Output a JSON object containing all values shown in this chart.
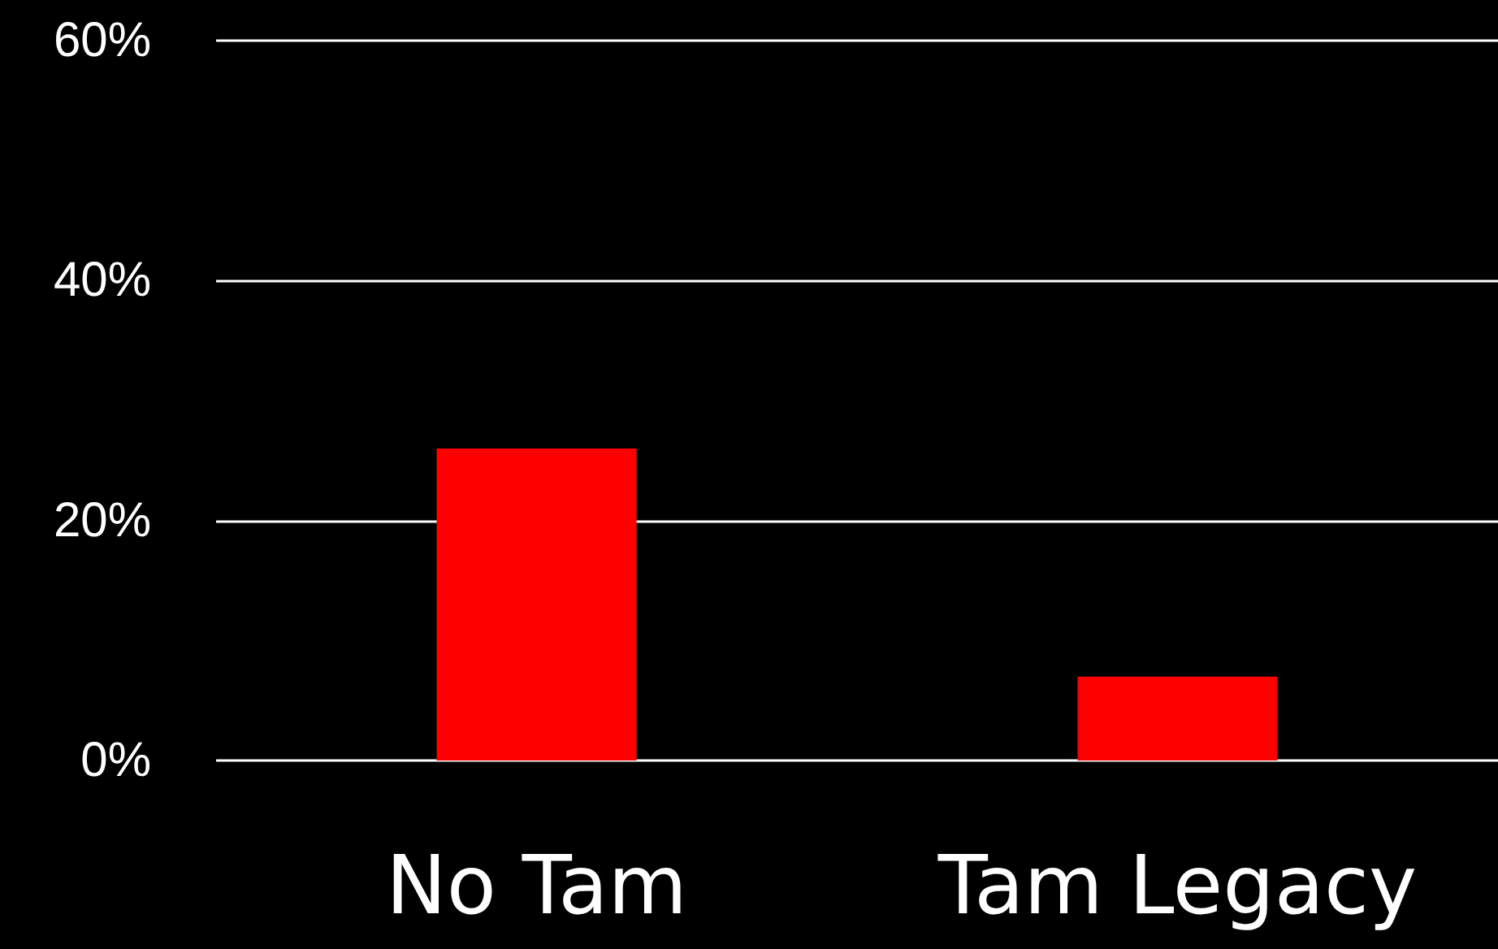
{
  "chart_data": {
    "type": "bar",
    "categories": [
      "No Tam",
      "Tam Legacy"
    ],
    "values": [
      26,
      7
    ],
    "color": "#ff0000",
    "ylim": [
      0,
      60
    ],
    "yticks": [
      {
        "value": 0,
        "label": "0%"
      },
      {
        "value": 20,
        "label": "20%"
      },
      {
        "value": 40,
        "label": "40%"
      },
      {
        "value": 60,
        "label": "60%"
      }
    ],
    "grid": "y"
  }
}
